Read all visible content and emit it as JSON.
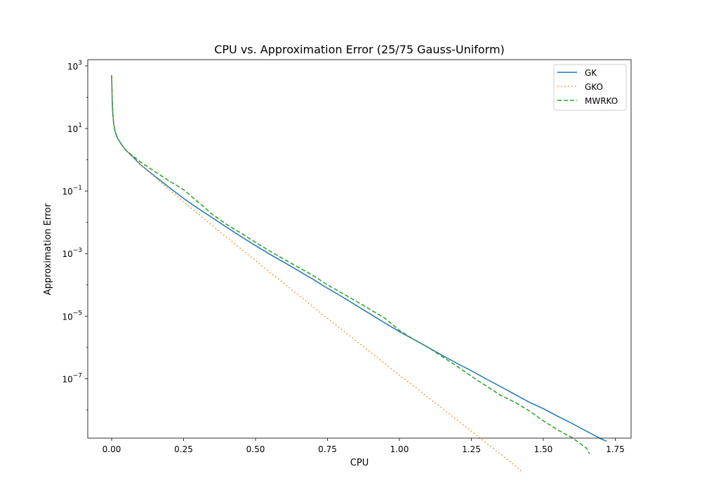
{
  "chart_data": {
    "type": "line",
    "title": "CPU vs. Approximation Error (25/75 Gauss-Uniform)",
    "xlabel": "CPU",
    "ylabel": "Approximation Error",
    "xlim": [
      -0.083,
      1.805
    ],
    "ylim_log10": [
      -8.9,
      3.2
    ],
    "yscale": "log",
    "grid": false,
    "legend_position": "top-right",
    "xticks": [
      0.0,
      0.25,
      0.5,
      0.75,
      1.0,
      1.25,
      1.5,
      1.75
    ],
    "xtick_labels": [
      "0.00",
      "0.25",
      "0.50",
      "0.75",
      "1.00",
      "1.25",
      "1.50",
      "1.75"
    ],
    "yticks": [
      {
        "base": "10",
        "exp": "3",
        "value": 1000
      },
      {
        "base": "10",
        "exp": "1",
        "value": 10
      },
      {
        "base": "10",
        "exp": "−1",
        "value": 0.1
      },
      {
        "base": "10",
        "exp": "−3",
        "value": 0.001
      },
      {
        "base": "10",
        "exp": "−5",
        "value": 1e-05
      },
      {
        "base": "10",
        "exp": "−7",
        "value": 1e-07
      }
    ],
    "series": [
      {
        "name": "GK",
        "color": "#1f77b4",
        "style": "solid",
        "x": [
          0.0,
          0.001,
          0.002,
          0.004,
          0.007,
          0.012,
          0.02,
          0.035,
          0.05,
          0.075,
          0.1,
          0.15,
          0.2,
          0.25,
          0.3,
          0.35,
          0.4,
          0.45,
          0.5,
          0.55,
          0.6,
          0.65,
          0.7,
          0.75,
          0.8,
          0.85,
          0.9,
          0.95,
          1.0,
          1.05,
          1.1,
          1.15,
          1.2,
          1.25,
          1.3,
          1.35,
          1.4,
          1.45,
          1.5,
          1.55,
          1.6,
          1.65,
          1.7,
          1.72
        ],
        "y": [
          500,
          200,
          80,
          30,
          15,
          8,
          5,
          3,
          2,
          1.2,
          0.7,
          0.3,
          0.13,
          0.058,
          0.028,
          0.014,
          0.0069,
          0.0035,
          0.0018,
          0.00095,
          0.00052,
          0.00028,
          0.00015,
          7.8e-05,
          4.2e-05,
          2.2e-05,
          1.15e-05,
          6e-06,
          3.2e-06,
          1.8e-06,
          1e-06,
          5.5e-07,
          3.1e-07,
          1.8e-07,
          1e-07,
          5.7e-08,
          3.2e-08,
          1.8e-08,
          1.1e-08,
          6.3e-09,
          3.7e-09,
          2.1e-09,
          1.2e-09,
          1e-09
        ]
      },
      {
        "name": "GKO",
        "color": "#ff7f0e",
        "style": "dotted",
        "x": [
          0.0,
          0.001,
          0.002,
          0.004,
          0.007,
          0.012,
          0.02,
          0.035,
          0.05,
          0.075,
          0.1,
          0.15,
          0.2,
          0.25,
          0.3,
          0.35,
          0.4,
          0.45,
          0.5,
          0.55,
          0.6,
          0.65,
          0.7,
          0.75,
          0.8,
          0.85,
          0.9,
          0.95,
          1.0,
          1.05,
          1.1,
          1.15,
          1.2,
          1.25,
          1.3,
          1.35,
          1.4,
          1.43
        ],
        "y": [
          500,
          200,
          80,
          30,
          15,
          8,
          5,
          3,
          2,
          1.2,
          0.7,
          0.28,
          0.11,
          0.045,
          0.019,
          0.0079,
          0.0033,
          0.0014,
          0.0006,
          0.00025,
          0.00011,
          4.6e-05,
          2e-05,
          8.5e-06,
          3.7e-06,
          1.6e-06,
          7e-07,
          3e-07,
          1.3e-07,
          5.8e-08,
          2.5e-08,
          1.1e-08,
          4.8e-09,
          2.1e-09,
          9e-10,
          4e-10,
          1.7e-10,
          1e-10
        ]
      },
      {
        "name": "MWRKO",
        "color": "#2ca02c",
        "style": "dashed",
        "x": [
          0.0,
          0.001,
          0.002,
          0.004,
          0.007,
          0.012,
          0.02,
          0.035,
          0.05,
          0.075,
          0.1,
          0.15,
          0.2,
          0.25,
          0.3,
          0.35,
          0.4,
          0.45,
          0.5,
          0.55,
          0.6,
          0.65,
          0.7,
          0.75,
          0.8,
          0.85,
          0.9,
          0.95,
          1.0,
          1.05,
          1.1,
          1.15,
          1.2,
          1.25,
          1.3,
          1.35,
          1.4,
          1.45,
          1.5,
          1.55,
          1.6,
          1.65,
          1.66
        ],
        "y": [
          500,
          200,
          80,
          30,
          15,
          8,
          5,
          3,
          2,
          1.3,
          0.85,
          0.42,
          0.21,
          0.11,
          0.045,
          0.018,
          0.0085,
          0.0045,
          0.0023,
          0.0012,
          0.00065,
          0.00036,
          0.0002,
          0.0001,
          5.5e-05,
          3e-05,
          1.6e-05,
          8.5e-06,
          3.5e-06,
          1.8e-06,
          1e-06,
          5e-07,
          2.5e-07,
          1.2e-07,
          6e-08,
          3e-08,
          1.8e-08,
          9.5e-09,
          4.5e-09,
          2.3e-09,
          1.3e-09,
          6e-10,
          4e-10
        ]
      }
    ]
  }
}
